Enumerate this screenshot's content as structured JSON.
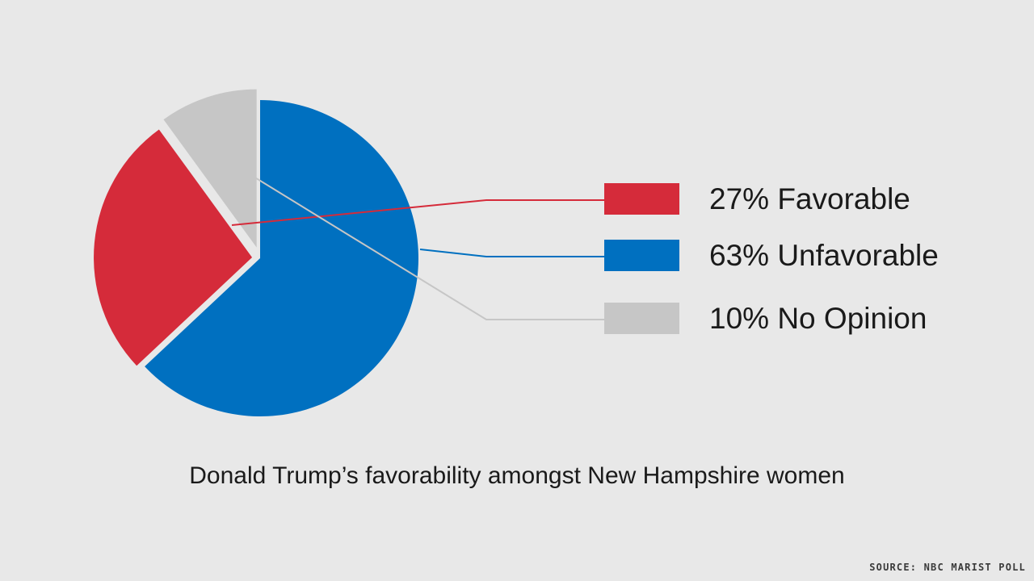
{
  "chart_data": {
    "type": "pie",
    "title": "Donald Trump’s favorability amongst New Hampshire women",
    "slices": [
      {
        "label": "Favorable",
        "value": 27,
        "display": "27% Favorable",
        "color": "#d52b3a"
      },
      {
        "label": "Unfavorable",
        "value": 63,
        "display": "63% Unfavorable",
        "color": "#0070c0"
      },
      {
        "label": "No Opinion",
        "value": 10,
        "display": "10% No Opinion",
        "color": "#c6c6c6"
      }
    ],
    "legend_position": "right",
    "source": "SOURCE: NBC MARIST POLL"
  }
}
